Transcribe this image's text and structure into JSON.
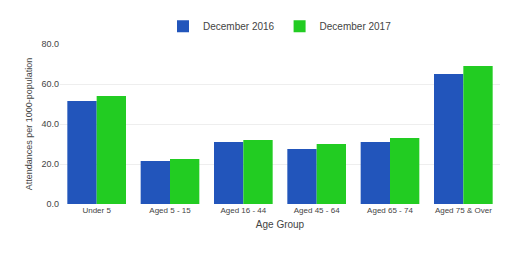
{
  "chart_data": {
    "type": "bar",
    "categories": [
      "Under 5",
      "Aged 5 - 15",
      "Aged 16 - 44",
      "Aged 45 - 64",
      "Aged 65 - 74",
      "Aged 75 & Over"
    ],
    "series": [
      {
        "name": "December 2016",
        "color": "#2255bb",
        "values": [
          51.5,
          21.5,
          31.0,
          27.5,
          31.0,
          65.0
        ]
      },
      {
        "name": "December 2017",
        "color": "#22cc22",
        "values": [
          54.0,
          22.5,
          32.0,
          30.0,
          33.0,
          69.0
        ]
      }
    ],
    "xlabel": "Age Group",
    "ylabel": "Attendances per 1000-population",
    "ylim": [
      0,
      80
    ],
    "yticks": [
      {
        "value": 0,
        "label": "0.0"
      },
      {
        "value": 20,
        "label": "20.0"
      },
      {
        "value": 40,
        "label": "40.0"
      },
      {
        "value": 60,
        "label": "60.0"
      },
      {
        "value": 80,
        "label": "80.0"
      }
    ],
    "grid": true,
    "legend": "top"
  }
}
